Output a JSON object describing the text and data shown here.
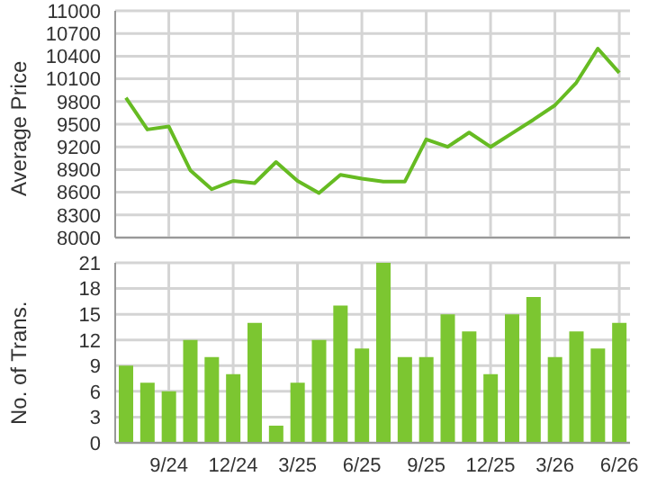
{
  "chart_data": [
    {
      "type": "line",
      "ylabel": "Average Price",
      "series": [
        {
          "color": "#66bb22",
          "values": [
            9850,
            9430,
            9470,
            8890,
            8640,
            8750,
            8720,
            9000,
            8750,
            8590,
            8830,
            8780,
            8740,
            8740,
            9300,
            9200,
            9390,
            9200,
            9380,
            9560,
            9750,
            10050,
            10500,
            10180
          ]
        }
      ],
      "ylim": [
        8000,
        11000
      ],
      "yticks": [
        8000,
        8300,
        8600,
        8900,
        9200,
        9500,
        9800,
        10100,
        10400,
        10700,
        11000
      ],
      "grid": true,
      "tick_labels": "y",
      "marker": "none"
    },
    {
      "type": "bar",
      "ylabel": "No. of Trans.",
      "categories": [
        null,
        null,
        "9/24",
        null,
        null,
        "12/24",
        null,
        null,
        "3/25",
        null,
        null,
        "6/25",
        null,
        null,
        "9/25",
        null,
        null,
        "12/25",
        null,
        null,
        "3/26",
        null,
        null,
        "6/26"
      ],
      "series": [
        {
          "color": "#7cc631",
          "values": [
            9,
            7,
            6,
            12,
            10,
            8,
            14,
            2,
            7,
            12,
            16,
            11,
            21,
            10,
            10,
            15,
            13,
            8,
            15,
            17,
            10,
            13,
            11,
            14
          ]
        }
      ],
      "ylim": [
        0,
        21
      ],
      "yticks": [
        0,
        3,
        6,
        9,
        12,
        15,
        18,
        21
      ],
      "grid": true
    }
  ]
}
